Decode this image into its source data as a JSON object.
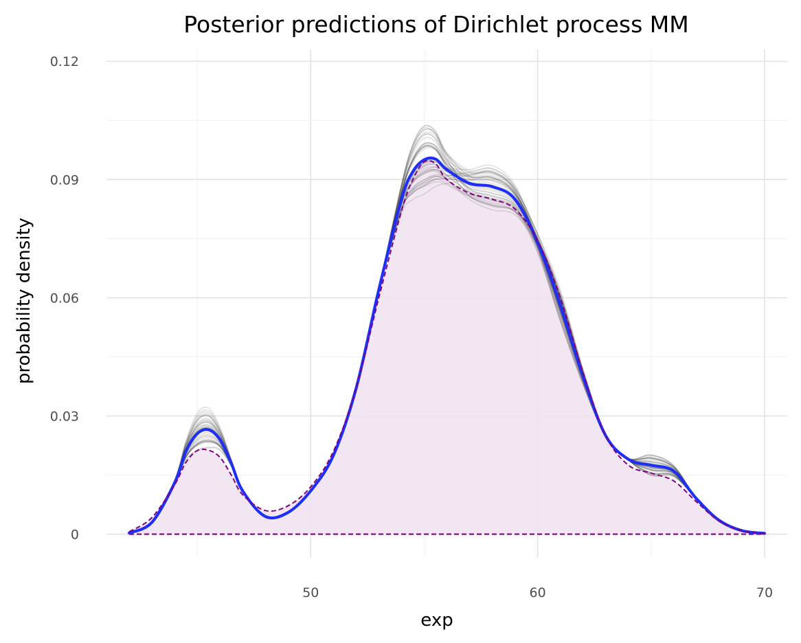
{
  "chart_data": {
    "type": "line",
    "title": "Posterior predictions of Dirichlet process MM",
    "xlabel": "exp",
    "ylabel": "probability density",
    "xlim": [
      41,
      71
    ],
    "ylim": [
      -0.006,
      0.123
    ],
    "x_ticks": [
      50,
      60,
      70
    ],
    "x_tick_labels": [
      "50",
      "60",
      "70"
    ],
    "y_ticks": [
      0,
      0.03,
      0.06,
      0.09,
      0.12
    ],
    "y_tick_labels": [
      "0",
      "0.03",
      "0.06",
      "0.09",
      "0.12"
    ],
    "grid": true,
    "legend": "none",
    "colors": {
      "posterior_mean": "#1f2ff5",
      "kde": "#800080",
      "kde_fill": "#efe2ef",
      "posterior_draws": "#000000"
    },
    "series": [
      {
        "role": "posterior_mean",
        "style": "solid-thick",
        "x": [
          42,
          43,
          44,
          44.5,
          45,
          45.5,
          46,
          46.5,
          47,
          48,
          49,
          50,
          51,
          52,
          53,
          54,
          54.5,
          55,
          55.5,
          56,
          57,
          58,
          59,
          60,
          61,
          62,
          63,
          64,
          65,
          66,
          67,
          68,
          69,
          70
        ],
        "y": [
          0.0003,
          0.003,
          0.013,
          0.021,
          0.0255,
          0.0265,
          0.024,
          0.018,
          0.011,
          0.0045,
          0.0055,
          0.011,
          0.02,
          0.037,
          0.062,
          0.085,
          0.092,
          0.095,
          0.0952,
          0.0925,
          0.089,
          0.0882,
          0.085,
          0.074,
          0.058,
          0.04,
          0.025,
          0.019,
          0.0175,
          0.016,
          0.009,
          0.0035,
          0.0009,
          0.0002
        ]
      },
      {
        "role": "kde",
        "style": "dashed-filled",
        "x": [
          42,
          43,
          44,
          44.5,
          45,
          45.5,
          46,
          46.5,
          47,
          48,
          49,
          50,
          51,
          52,
          53,
          54,
          54.5,
          55,
          55.5,
          56,
          57,
          58,
          59,
          60,
          61,
          62,
          63,
          64,
          65,
          66,
          67,
          68,
          69,
          70
        ],
        "y": [
          0.0006,
          0.0042,
          0.0125,
          0.0182,
          0.0212,
          0.0213,
          0.0195,
          0.015,
          0.01,
          0.006,
          0.0072,
          0.012,
          0.021,
          0.037,
          0.06,
          0.082,
          0.09,
          0.0945,
          0.094,
          0.09,
          0.0865,
          0.085,
          0.0825,
          0.0745,
          0.06,
          0.041,
          0.025,
          0.0175,
          0.0155,
          0.0135,
          0.0082,
          0.0033,
          0.0009,
          0.0002
        ]
      },
      {
        "role": "baseline",
        "style": "dashed",
        "x": [
          42,
          70
        ],
        "y": [
          0,
          0
        ]
      }
    ],
    "posterior_draw_count": 40
  }
}
